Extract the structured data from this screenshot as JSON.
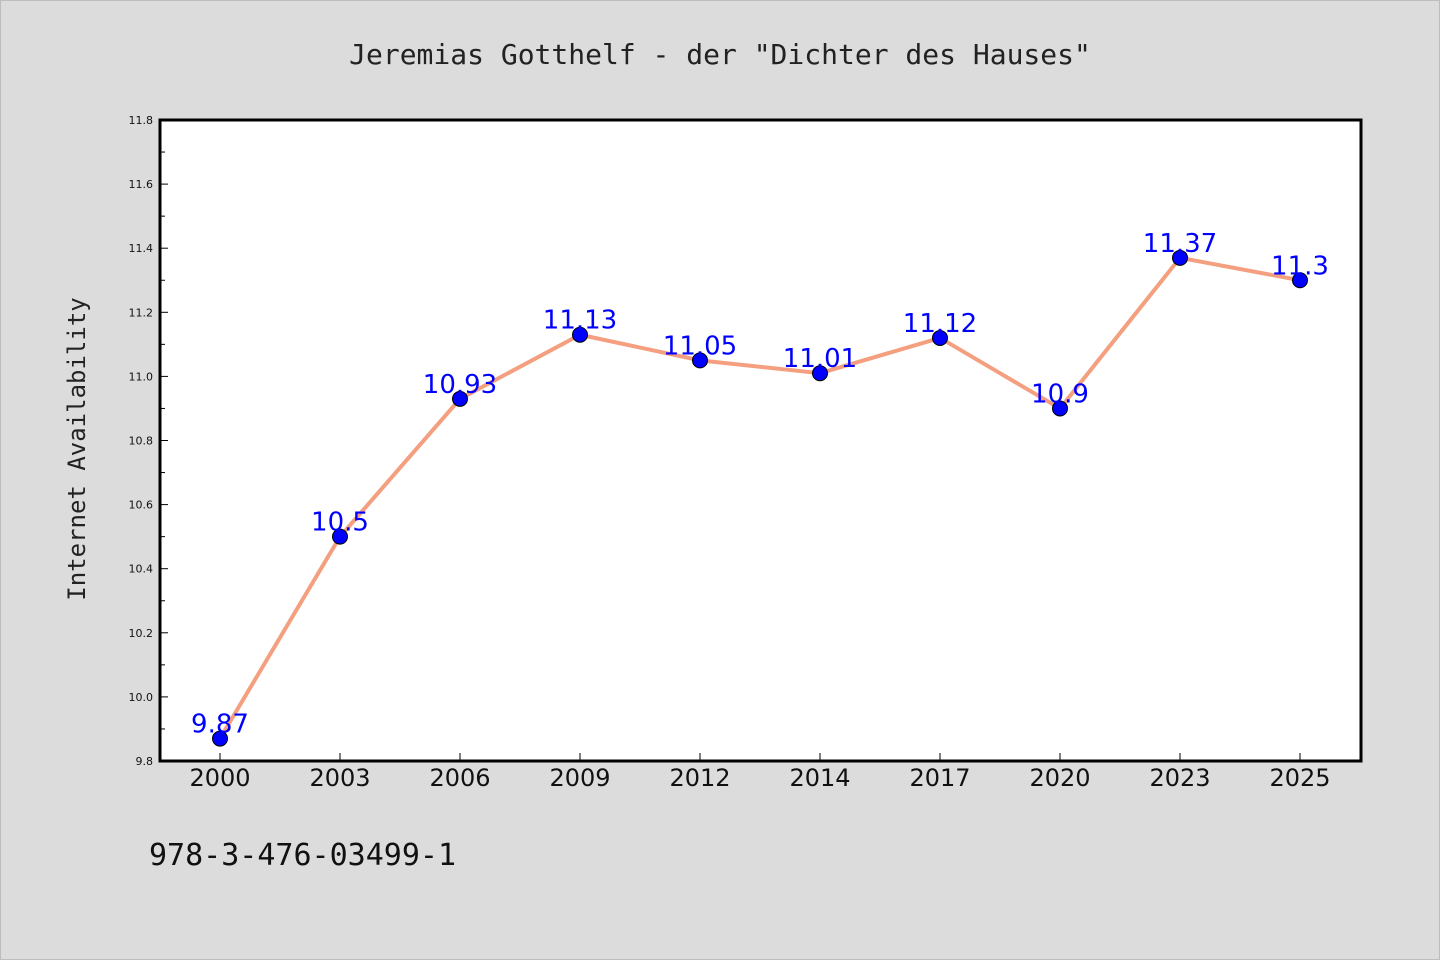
{
  "chart_data": {
    "type": "line",
    "title": "Jeremias Gotthelf - der \"Dichter des Hauses\"",
    "xlabel": "",
    "ylabel": "Internet Availability",
    "categories": [
      "2000",
      "2003",
      "2006",
      "2009",
      "2012",
      "2014",
      "2017",
      "2020",
      "2023",
      "2025"
    ],
    "values": [
      9.87,
      10.5,
      10.93,
      11.13,
      11.05,
      11.01,
      11.12,
      10.9,
      11.37,
      11.3
    ],
    "data_labels": [
      "9.87",
      "10.5",
      "10.93",
      "11.13",
      "11.05",
      "11.01",
      "11.12",
      "10.9",
      "11.37",
      "11.3"
    ],
    "ylim": [
      9.8,
      11.8
    ],
    "yticks": [
      "9.8",
      "10.0",
      "10.2",
      "10.4",
      "10.6",
      "10.8",
      "11.0",
      "11.2",
      "11.4",
      "11.6",
      "11.8"
    ],
    "grid": false,
    "legend": "none",
    "line_color": "#f4a080",
    "marker_color": "#0000ff",
    "label_color": "#0000ff",
    "background_color": "#dcdcdc",
    "plot_background": "#ffffff"
  },
  "footer": {
    "text": "978-3-476-03499-1"
  }
}
